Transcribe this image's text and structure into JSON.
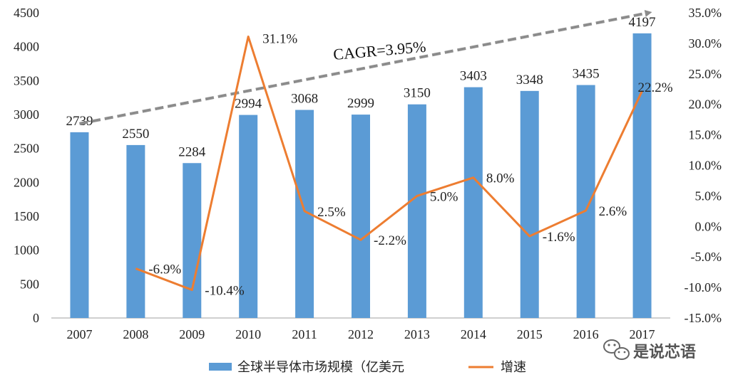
{
  "chart_data": {
    "type": "bar",
    "categories": [
      "2007",
      "2008",
      "2009",
      "2010",
      "2011",
      "2012",
      "2013",
      "2014",
      "2015",
      "2016",
      "2017"
    ],
    "series": [
      {
        "name": "全球半导体市场规模（亿美元",
        "axis": "left",
        "kind": "bar",
        "color": "#5b9bd5",
        "values": [
          2739,
          2550,
          2284,
          2994,
          3068,
          2999,
          3150,
          3403,
          3348,
          3435,
          4197
        ],
        "labels": [
          "2739",
          "2550",
          "2284",
          "2994",
          "3068",
          "2999",
          "3150",
          "3403",
          "3348",
          "3435",
          "4197"
        ]
      },
      {
        "name": "增速",
        "axis": "right",
        "kind": "line",
        "color": "#ed7d31",
        "values": [
          null,
          -6.9,
          -10.4,
          31.1,
          2.5,
          -2.2,
          5.0,
          8.0,
          -1.6,
          2.6,
          22.2
        ],
        "labels": [
          "",
          "-6.9%",
          "-10.4%",
          "31.1%",
          "2.5%",
          "-2.2%",
          "5.0%",
          "8.0%",
          "-1.6%",
          "2.6%",
          "22.2%"
        ]
      }
    ],
    "y_left": {
      "min": 0,
      "max": 4500,
      "ticks": [
        "0",
        "500",
        "1000",
        "1500",
        "2000",
        "2500",
        "3000",
        "3500",
        "4000",
        "4500"
      ]
    },
    "y_right": {
      "min": -15,
      "max": 35,
      "ticks": [
        "-15.0%",
        "-10.0%",
        "-5.0%",
        "0.0%",
        "5.0%",
        "10.0%",
        "15.0%",
        "20.0%",
        "25.0%",
        "30.0%",
        "35.0%"
      ]
    },
    "trend": {
      "label": "CAGR=3.95%",
      "from": {
        "category": "2007",
        "value": 2739
      },
      "to": {
        "category": "2017",
        "value": 4460
      }
    },
    "legend": {
      "position": "bottom",
      "items": [
        "全球半导体市场规模（亿美元",
        "增速"
      ]
    },
    "grid": false
  },
  "watermark": {
    "text": "是说芯语"
  }
}
